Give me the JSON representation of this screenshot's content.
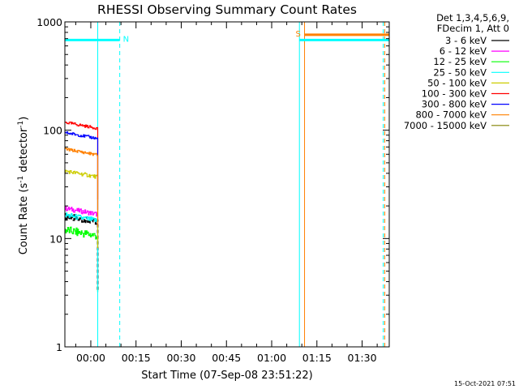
{
  "chart_data": {
    "type": "line",
    "title": "RHESSI Observing Summary Count Rates",
    "xlabel": "Start Time (07-Sep-08 23:51:22)",
    "ylabel_main": "Count Rate (s",
    "ylabel_sup1": "-1",
    "ylabel_mid": " detector",
    "ylabel_sup2": "-1",
    "ylabel_end": ")",
    "y_scale": "log",
    "ylim": [
      1,
      1000
    ],
    "xlim_minutes": [
      -8.6,
      99
    ],
    "y_ticks": [
      {
        "value": 1,
        "label": "1"
      },
      {
        "value": 10,
        "label": "10"
      },
      {
        "value": 100,
        "label": "100"
      },
      {
        "value": 1000,
        "label": "1000"
      }
    ],
    "x_ticks": [
      {
        "minutes": 0,
        "label": "00:00"
      },
      {
        "minutes": 15,
        "label": "00:15"
      },
      {
        "minutes": 30,
        "label": "00:30"
      },
      {
        "minutes": 45,
        "label": "00:45"
      },
      {
        "minutes": 60,
        "label": "01:00"
      },
      {
        "minutes": 75,
        "label": "01:15"
      },
      {
        "minutes": 90,
        "label": "01:30"
      }
    ],
    "detectors": "Det 1,3,4,5,6,9,",
    "decimation": "FDecim 1, Att 0",
    "series": [
      {
        "name": "3 - 6 keV",
        "color": "#000000",
        "level": 16,
        "jitter": 0.07,
        "dashed": true
      },
      {
        "name": "6 - 12 keV",
        "color": "#ff00ff",
        "level": 19,
        "jitter": 0.05
      },
      {
        "name": "12 - 25 keV",
        "color": "#00ff00",
        "level": 12,
        "jitter": 0.09
      },
      {
        "name": "25 - 50 keV",
        "color": "#00ffff",
        "level": 16.5,
        "jitter": 0.06
      },
      {
        "name": "50 - 100 keV",
        "color": "#cccc00",
        "level": 42,
        "jitter": 0.04
      },
      {
        "name": "100 - 300 keV",
        "color": "#ff0000",
        "level": 118,
        "jitter": 0.03
      },
      {
        "name": "300 - 800 keV",
        "color": "#0000ff",
        "level": 95,
        "jitter": 0.03
      },
      {
        "name": "800 - 7000 keV",
        "color": "#ff8000",
        "level": 67,
        "jitter": 0.03
      },
      {
        "name": "7000 - 15000 keV",
        "color": "#808000",
        "level": 0,
        "jitter": 0
      }
    ],
    "data_interval_minutes": [
      -8.6,
      2.3
    ],
    "flags": [
      {
        "label": "N",
        "color": "#00ffff",
        "start": -8.6,
        "end": 9.6,
        "value": 680
      },
      {
        "label": "S",
        "color": "#ff8000",
        "start": 70.9,
        "end": 99,
        "value": 760
      },
      {
        "label": "",
        "color": "#00ffff",
        "start": 69.2,
        "end": 99,
        "value": 680
      }
    ],
    "vertical_markers": [
      {
        "minutes": 2.3,
        "color": "#00ffff",
        "style": "solid"
      },
      {
        "minutes": 9.6,
        "color": "#00ffff",
        "style": "dashed"
      },
      {
        "minutes": 69.2,
        "color": "#00ffff",
        "style": "solid"
      },
      {
        "minutes": 70.9,
        "color": "#ff8000",
        "style": "solid"
      },
      {
        "minutes": 97,
        "color": "#00ffff",
        "style": "dashed"
      },
      {
        "minutes": 97.5,
        "color": "#ff8000",
        "style": "dashed"
      }
    ],
    "footer_date": "15-Oct-2021 07:51"
  }
}
